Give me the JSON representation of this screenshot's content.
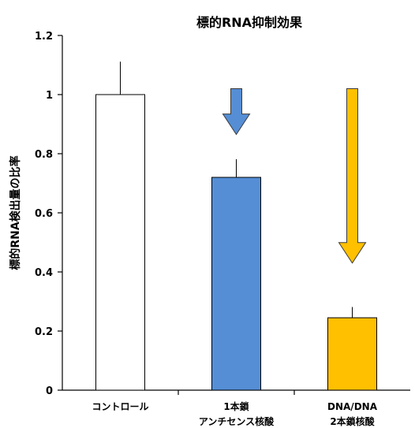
{
  "chart_data": {
    "type": "bar",
    "title": "標的RNA抑制効果",
    "ylabel": "標的RNA検出量の比率",
    "xlabel": "",
    "ylim": [
      0,
      1.2
    ],
    "yticks": [
      "0",
      "0.2",
      "0.4",
      "0.6",
      "0.8",
      "1",
      "1.2"
    ],
    "grid": false,
    "categories": [
      [
        "コントロール"
      ],
      [
        "1本鎖",
        "アンチセンス核酸"
      ],
      [
        "DNA/DNA",
        "2本鎖核酸"
      ]
    ],
    "values": [
      1.0,
      0.72,
      0.245
    ],
    "errors": [
      0.11,
      0.06,
      0.035
    ],
    "colors": [
      "#ffffff",
      "#558ed5",
      "#ffc000"
    ],
    "arrows": [
      {
        "category_index": 1,
        "from": 1.02,
        "to": 0.865,
        "color": "#558ed5"
      },
      {
        "category_index": 2,
        "from": 1.02,
        "to": 0.43,
        "color": "#ffc000"
      }
    ]
  }
}
